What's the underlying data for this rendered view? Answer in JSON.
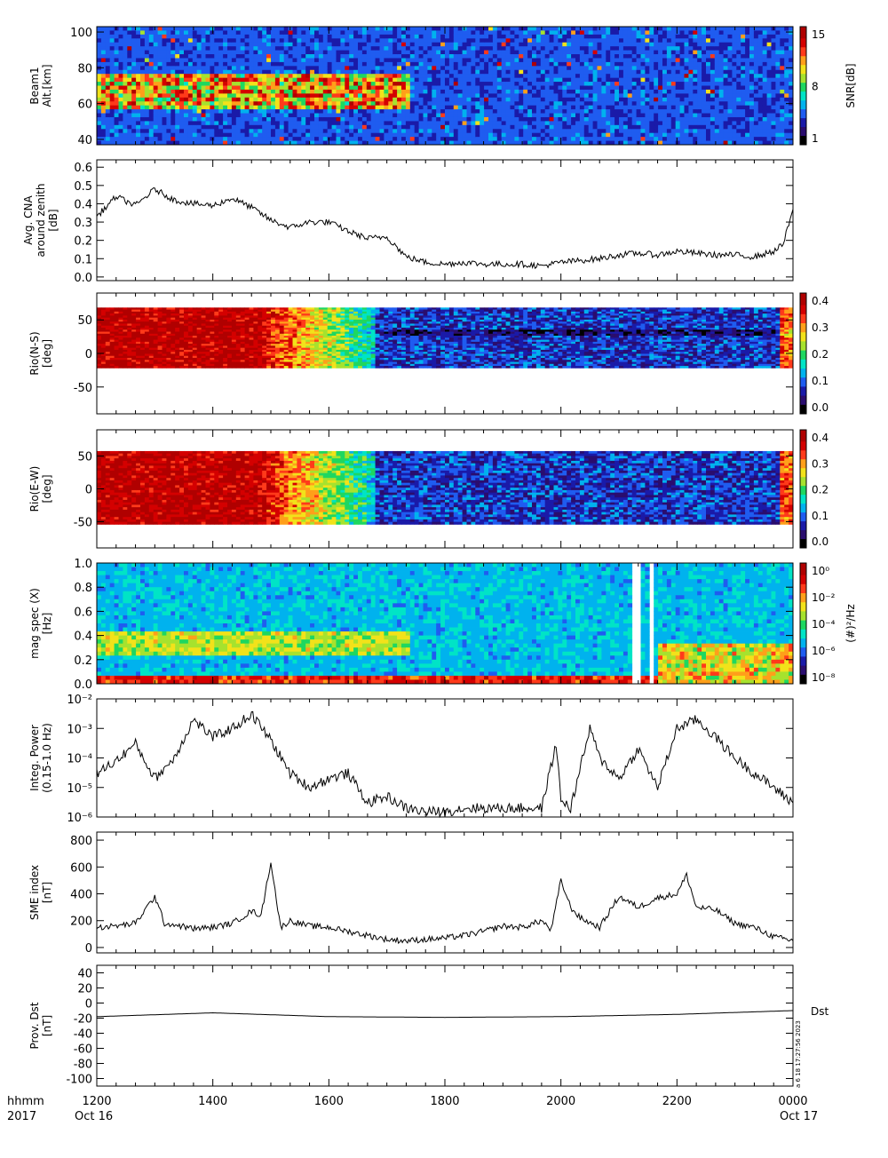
{
  "footer": {
    "left_top": "hhmm",
    "left_bottom": "2017",
    "start_date": "Oct 16",
    "end_date": "Oct 17",
    "time_ticks": [
      "1200",
      "1400",
      "1600",
      "1800",
      "2000",
      "2200",
      "0000"
    ],
    "side_stamp": "a  6 18 17:27:56 2023"
  },
  "colors": {
    "rainbow": [
      "#000000",
      "#2a0d6e",
      "#1a1aa8",
      "#1f5cf0",
      "#00b2ee",
      "#00e4c6",
      "#1ed760",
      "#a6e22e",
      "#f2e21a",
      "#ff9f1a",
      "#ff3a1a",
      "#d40000",
      "#b00000"
    ]
  },
  "chart_data": [
    {
      "type": "heatmap",
      "ylabel": [
        "Beam1",
        "Alt.[km]"
      ],
      "yticks": [
        40,
        60,
        80,
        100
      ],
      "ylim": [
        37,
        103
      ],
      "colorbar": {
        "label": "SNR[dB]",
        "ticks": [
          "15",
          "8",
          "1"
        ]
      },
      "note": "Enhanced SNR band between about 58 and 78 km from 1200 to ~1745, sparse echoes above 80 km thereafter"
    },
    {
      "type": "line",
      "ylabel": [
        "Avg. CNA",
        "around zenith",
        "[dB]"
      ],
      "yticks": [
        "0.6",
        "0.5",
        "0.4",
        "0.3",
        "0.2",
        "0.1",
        "0.0"
      ],
      "ylim": [
        -0.02,
        0.64
      ],
      "x": [
        "1200",
        "1220",
        "1240",
        "1300",
        "1320",
        "1340",
        "1400",
        "1420",
        "1440",
        "1500",
        "1520",
        "1540",
        "1600",
        "1620",
        "1640",
        "1700",
        "1720",
        "1740",
        "1800",
        "1820",
        "1840",
        "1900",
        "1920",
        "1940",
        "2000",
        "2020",
        "2040",
        "2100",
        "2120",
        "2140",
        "2200",
        "2220",
        "2240",
        "2300",
        "2320",
        "2340",
        "2350",
        "0000"
      ],
      "values": [
        0.33,
        0.44,
        0.39,
        0.48,
        0.42,
        0.4,
        0.39,
        0.43,
        0.38,
        0.31,
        0.27,
        0.3,
        0.3,
        0.25,
        0.21,
        0.22,
        0.11,
        0.08,
        0.07,
        0.08,
        0.07,
        0.07,
        0.07,
        0.06,
        0.08,
        0.09,
        0.1,
        0.12,
        0.13,
        0.12,
        0.14,
        0.13,
        0.12,
        0.12,
        0.11,
        0.14,
        0.18,
        0.37
      ]
    },
    {
      "type": "heatmap",
      "ylabel": [
        "Rio(N-S)",
        "[deg]"
      ],
      "yticks": [
        50,
        0,
        -50
      ],
      "ylim": [
        -90,
        90
      ],
      "colorbar": {
        "label": "",
        "ticks": [
          "0.4",
          "0.3",
          "0.2",
          "0.1",
          "0.0"
        ]
      },
      "note": "Strong absorption (red) 1200-1440, decreasing to blue after ~1745"
    },
    {
      "type": "heatmap",
      "ylabel": [
        "Rio(E-W)",
        "[deg]"
      ],
      "yticks": [
        50,
        0,
        -50
      ],
      "ylim": [
        -90,
        90
      ],
      "colorbar": {
        "label": "",
        "ticks": [
          "0.4",
          "0.3",
          "0.2",
          "0.1",
          "0.0"
        ]
      }
    },
    {
      "type": "heatmap",
      "ylabel": [
        "mag spec (X)",
        "[Hz]"
      ],
      "yticks": [
        "1.0",
        "0.8",
        "0.6",
        "0.4",
        "0.2",
        "0.0"
      ],
      "ylim": [
        0,
        1
      ],
      "colorbar": {
        "label": "(#)²/Hz",
        "ticks": [
          "10⁰",
          "10⁻²",
          "10⁻⁴",
          "10⁻⁶",
          "10⁻⁸"
        ]
      },
      "gaps": [
        "2110-2120",
        "2135-2145"
      ]
    },
    {
      "type": "line",
      "ylabel": [
        "Integ. Power",
        "(0.15-1.0 Hz)"
      ],
      "yticks": [
        "10⁻²",
        "10⁻³",
        "10⁻⁴",
        "10⁻⁵",
        "10⁻⁶"
      ],
      "ylog": true,
      "ylim": [
        1e-06,
        0.01
      ],
      "x": [
        "1200",
        "1220",
        "1240",
        "1300",
        "1320",
        "1340",
        "1400",
        "1420",
        "1440",
        "1500",
        "1520",
        "1540",
        "1600",
        "1620",
        "1640",
        "1700",
        "1720",
        "1740",
        "1800",
        "1820",
        "1840",
        "1900",
        "1920",
        "1940",
        "1955",
        "2000",
        "2010",
        "2030",
        "2040",
        "2100",
        "2120",
        "2140",
        "2200",
        "2220",
        "2240",
        "2300",
        "2320",
        "2340",
        "0000"
      ],
      "values": [
        3e-05,
        8e-05,
        0.0003,
        2e-05,
        0.0001,
        0.002,
        0.0005,
        0.001,
        0.003,
        0.0004,
        3e-05,
        1e-05,
        2e-05,
        3e-05,
        3e-06,
        5e-06,
        2e-06,
        1.5e-06,
        1.5e-06,
        2e-06,
        2e-06,
        2e-06,
        2e-06,
        2e-06,
        0.0003,
        4e-06,
        2e-06,
        0.001,
        0.0001,
        2e-05,
        0.0002,
        1e-05,
        0.001,
        0.002,
        0.0005,
        0.0001,
        3e-05,
        1e-05,
        3e-06
      ]
    },
    {
      "type": "line",
      "ylabel": [
        "SME index",
        "[nT]"
      ],
      "yticks": [
        800,
        600,
        400,
        200,
        0
      ],
      "ylim": [
        -40,
        860
      ],
      "x": [
        "1200",
        "1220",
        "1240",
        "1300",
        "1310",
        "1320",
        "1340",
        "1400",
        "1420",
        "1440",
        "1450",
        "1500",
        "1510",
        "1520",
        "1540",
        "1600",
        "1620",
        "1640",
        "1700",
        "1720",
        "1740",
        "1800",
        "1820",
        "1840",
        "1900",
        "1920",
        "1940",
        "1950",
        "2000",
        "2010",
        "2020",
        "2040",
        "2100",
        "2120",
        "2140",
        "2200",
        "2210",
        "2220",
        "2240",
        "2300",
        "2320",
        "2340",
        "0000"
      ],
      "values": [
        150,
        160,
        180,
        380,
        180,
        170,
        140,
        150,
        180,
        270,
        240,
        640,
        150,
        200,
        160,
        150,
        120,
        90,
        60,
        50,
        60,
        70,
        90,
        120,
        160,
        150,
        200,
        130,
        500,
        300,
        220,
        150,
        380,
        300,
        370,
        400,
        540,
        300,
        280,
        180,
        150,
        80,
        50
      ]
    },
    {
      "type": "line",
      "ylabel": [
        "Prov. Dst",
        "[nT]"
      ],
      "yticks": [
        40,
        20,
        0,
        -20,
        -40,
        -60,
        -80,
        -100
      ],
      "ylim": [
        -110,
        50
      ],
      "series_label": "Dst",
      "x": [
        "1200",
        "1400",
        "1600",
        "1800",
        "2000",
        "2200",
        "0000"
      ],
      "values": [
        -18,
        -13,
        -18,
        -19,
        -18,
        -15,
        -10
      ]
    }
  ]
}
